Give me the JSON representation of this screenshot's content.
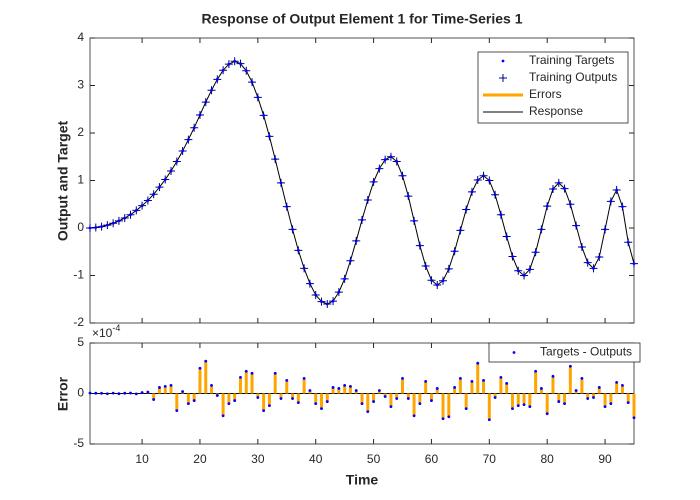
{
  "chart_data": [
    {
      "type": "line",
      "title": "Response of Output Element 1 for Time-Series 1",
      "y_label": "Output and Target",
      "x": [
        1,
        2,
        3,
        4,
        5,
        6,
        7,
        8,
        9,
        10,
        11,
        12,
        13,
        14,
        15,
        16,
        17,
        18,
        19,
        20,
        21,
        22,
        23,
        24,
        25,
        26,
        27,
        28,
        29,
        30,
        31,
        32,
        33,
        34,
        35,
        36,
        37,
        38,
        39,
        40,
        41,
        42,
        43,
        44,
        45,
        46,
        47,
        48,
        49,
        50,
        51,
        52,
        53,
        54,
        55,
        56,
        57,
        58,
        59,
        60,
        61,
        62,
        63,
        64,
        65,
        66,
        67,
        68,
        69,
        70,
        71,
        72,
        73,
        74,
        75,
        76,
        77,
        78,
        79,
        80,
        81,
        82,
        83,
        84,
        85,
        86,
        87,
        88,
        89,
        90,
        91,
        92,
        93,
        94,
        95
      ],
      "series": [
        {
          "name": "Training Targets",
          "color": "#0000ff",
          "marker": "dot",
          "values": [
            0,
            0.01,
            0.03,
            0.06,
            0.1,
            0.15,
            0.21,
            0.28,
            0.37,
            0.47,
            0.58,
            0.71,
            0.86,
            1.02,
            1.2,
            1.4,
            1.62,
            1.86,
            2.11,
            2.38,
            2.65,
            2.9,
            3.13,
            3.32,
            3.45,
            3.51,
            3.46,
            3.31,
            3.07,
            2.75,
            2.37,
            1.93,
            1.45,
            0.95,
            0.45,
            -0.03,
            -0.47,
            -0.85,
            -1.17,
            -1.41,
            -1.55,
            -1.6,
            -1.54,
            -1.35,
            -1.07,
            -0.69,
            -0.27,
            0.17,
            0.59,
            0.97,
            1.25,
            1.44,
            1.5,
            1.4,
            1.1,
            0.67,
            0.15,
            -0.37,
            -0.8,
            -1.1,
            -1.2,
            -1.11,
            -0.86,
            -0.49,
            -0.05,
            0.39,
            0.76,
            1.01,
            1.1,
            1,
            0.7,
            0.28,
            -0.18,
            -0.6,
            -0.9,
            -1,
            -0.87,
            -0.51,
            -0.03,
            0.46,
            0.82,
            0.95,
            0.83,
            0.5,
            0.05,
            -0.4,
            -0.73,
            -0.85,
            -0.61,
            -0.03,
            0.56,
            0.8,
            0.45,
            -0.3,
            -0.75
          ]
        },
        {
          "name": "Training Outputs",
          "color": "#00008b",
          "marker": "plus",
          "values": [
            0,
            0.01,
            0.03,
            0.06,
            0.1,
            0.15,
            0.21,
            0.28,
            0.37,
            0.47,
            0.58,
            0.71,
            0.86,
            1.02,
            1.2,
            1.4,
            1.62,
            1.86,
            2.11,
            2.38,
            2.65,
            2.9,
            3.13,
            3.32,
            3.45,
            3.51,
            3.46,
            3.31,
            3.07,
            2.75,
            2.37,
            1.93,
            1.45,
            0.95,
            0.45,
            -0.03,
            -0.47,
            -0.85,
            -1.17,
            -1.41,
            -1.55,
            -1.6,
            -1.54,
            -1.35,
            -1.07,
            -0.69,
            -0.27,
            0.17,
            0.59,
            0.97,
            1.25,
            1.44,
            1.5,
            1.4,
            1.1,
            0.67,
            0.15,
            -0.37,
            -0.8,
            -1.1,
            -1.2,
            -1.11,
            -0.86,
            -0.49,
            -0.05,
            0.39,
            0.76,
            1.01,
            1.1,
            1,
            0.7,
            0.28,
            -0.18,
            -0.6,
            -0.9,
            -1,
            -0.87,
            -0.51,
            -0.03,
            0.46,
            0.82,
            0.95,
            0.83,
            0.5,
            0.05,
            -0.4,
            -0.73,
            -0.85,
            -0.61,
            -0.03,
            0.56,
            0.8,
            0.45,
            -0.3,
            -0.75
          ]
        },
        {
          "name": "Errors",
          "color": "#ffa500",
          "marker": "thick-line"
        },
        {
          "name": "Response",
          "color": "#000000",
          "marker": "line"
        }
      ],
      "xlim": [
        1,
        95
      ],
      "ylim": [
        -2,
        4
      ],
      "yticks": [
        -2,
        -1,
        0,
        1,
        2,
        3,
        4
      ],
      "legend": "upper right"
    },
    {
      "type": "stem",
      "x_label": "Time",
      "y_label": "Error",
      "y_multiplier": {
        "base": "×10",
        "exponent": "-4"
      },
      "series": [
        {
          "name": "Targets - Outputs",
          "color": "#0000ff",
          "stem_color": "#ffa500",
          "values": [
            0.05,
            0.03,
            0.02,
            -0.03,
            0.04,
            -0.02,
            0.03,
            0.05,
            -0.04,
            0.1,
            0.15,
            -0.6,
            0.6,
            0.7,
            0.8,
            -1.7,
            0.2,
            -1,
            -0.7,
            2.5,
            3.2,
            0.8,
            -0.2,
            -2.2,
            -1,
            -0.7,
            1.6,
            2.2,
            2,
            -0.4,
            -1.7,
            -1.2,
            2,
            -0.5,
            1.3,
            -0.5,
            -0.9,
            1.5,
            0.3,
            -1,
            -1.5,
            -0.8,
            0.6,
            0.5,
            0.8,
            0.7,
            0.3,
            -1,
            -1.8,
            -0.8,
            0.3,
            -0.3,
            -1.3,
            -0.5,
            1.5,
            -0.5,
            -2.2,
            -1,
            1.2,
            -0.7,
            0.5,
            -2.5,
            -2.3,
            0.6,
            1.5,
            -1.5,
            1.2,
            3,
            1.3,
            -2.6,
            -0.4,
            1.6,
            1,
            -1.5,
            -1.2,
            -1.1,
            -1.3,
            2.2,
            0.5,
            -2,
            1.7,
            -0.8,
            -1,
            2.7,
            0.3,
            1.5,
            -0.5,
            -0.4,
            0.6,
            -1.3,
            -1,
            1.1,
            0.8,
            -0.9,
            -2.4
          ]
        }
      ],
      "xlim": [
        1,
        95
      ],
      "xticks": [
        10,
        20,
        30,
        40,
        50,
        60,
        70,
        80,
        90
      ],
      "ylim": [
        -5,
        5
      ],
      "yticks": [
        -5,
        0,
        5
      ],
      "legend": "upper right"
    }
  ]
}
